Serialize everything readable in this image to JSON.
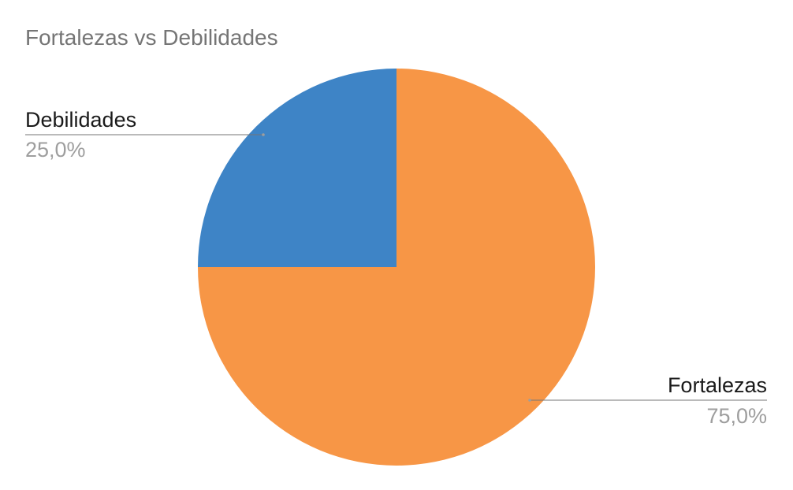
{
  "chart_data": {
    "type": "pie",
    "title": "Fortalezas vs Debilidades",
    "slices": [
      {
        "label": "Fortalezas",
        "value": 75.0,
        "display": "75,0%",
        "color": "#F79646"
      },
      {
        "label": "Debilidades",
        "value": 25.0,
        "display": "25,0%",
        "color": "#3E84C6"
      }
    ],
    "start_angle_deg": 0,
    "direction": "clockwise",
    "label_placement": "outside-with-leader-lines"
  }
}
